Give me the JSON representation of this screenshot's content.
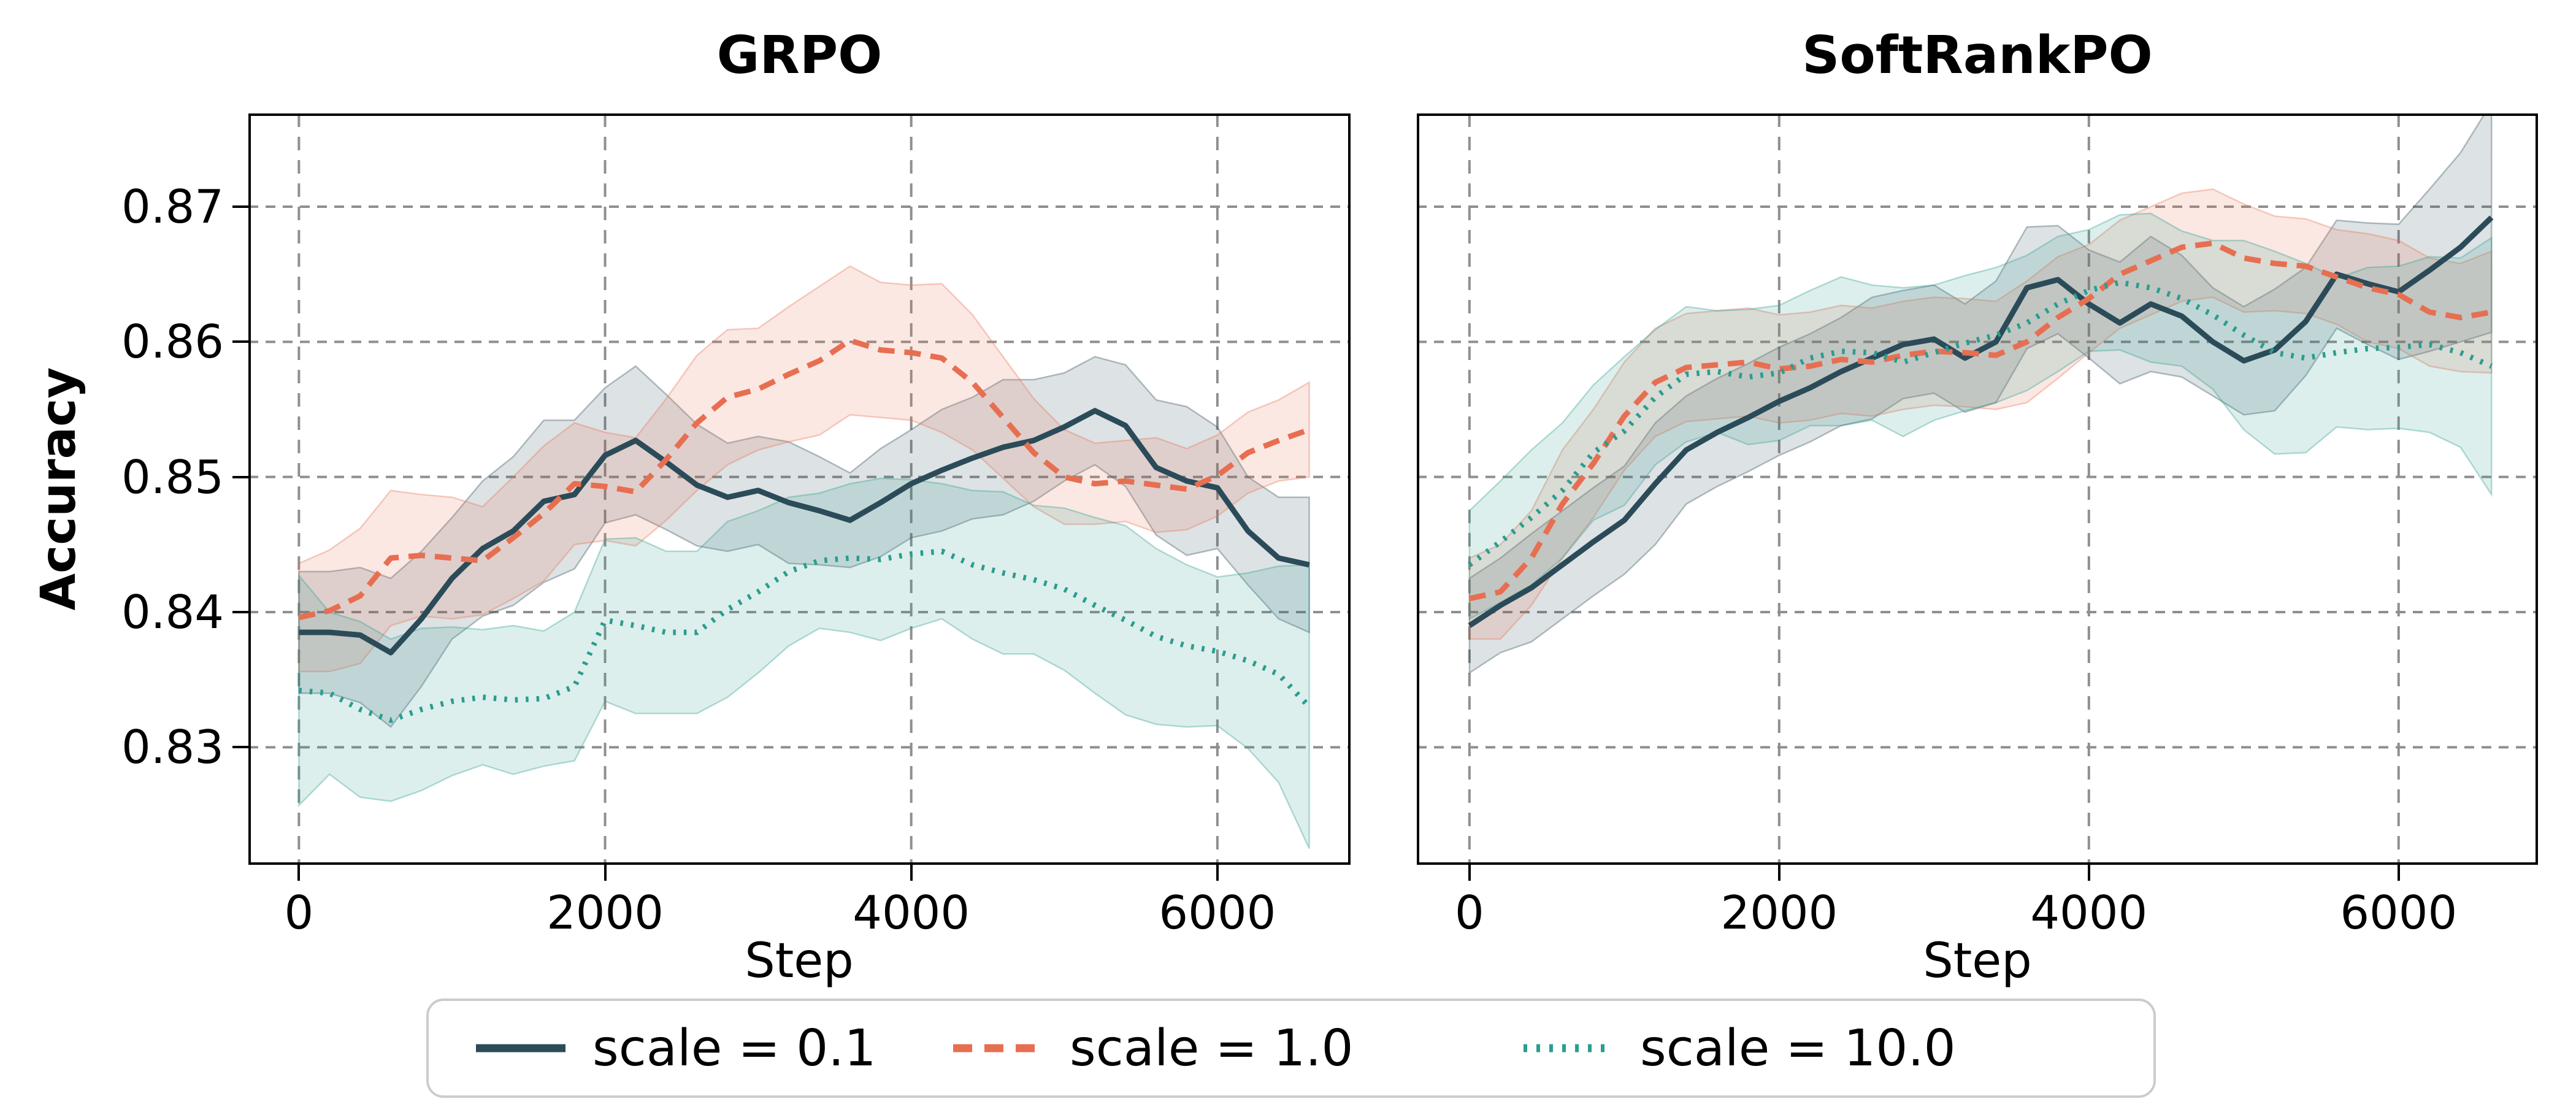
{
  "figure": {
    "ylabel": "Accuracy",
    "xlabel": "Step"
  },
  "legend": {
    "items": [
      {
        "label": "scale = 0.1",
        "color": "#2b4b59",
        "style": "solid"
      },
      {
        "label": "scale = 1.0",
        "color": "#e76f51",
        "style": "dashed"
      },
      {
        "label": "scale = 10.0",
        "color": "#2a9d8f",
        "style": "dotted"
      }
    ]
  },
  "chart_data": [
    {
      "type": "line",
      "title": "GRPO",
      "xlabel": "Step",
      "ylabel": "Accuracy",
      "x": [
        0,
        200,
        400,
        600,
        800,
        1000,
        1200,
        1400,
        1600,
        1800,
        2000,
        2200,
        2400,
        2600,
        2800,
        3000,
        3200,
        3400,
        3600,
        3800,
        4000,
        4200,
        4400,
        4600,
        4800,
        5000,
        5200,
        5400,
        5600,
        5800,
        6000,
        6200,
        6400,
        6600
      ],
      "xticks": [
        0,
        2000,
        4000,
        6000
      ],
      "yticks": [
        0.83,
        0.84,
        0.85,
        0.86,
        0.87
      ],
      "ytick_labels": [
        "0.83",
        "0.84",
        "0.85",
        "0.86",
        "0.87"
      ],
      "xlim": [
        -330,
        6870
      ],
      "ylim": [
        0.8213,
        0.8769
      ],
      "grid": true,
      "legend_position": "bottom-center-shared",
      "series": [
        {
          "name": "scale = 0.1",
          "color": "#2b4b59",
          "style": "solid",
          "values": [
            0.8385,
            0.8385,
            0.8383,
            0.837,
            0.8395,
            0.8425,
            0.8447,
            0.846,
            0.8482,
            0.8487,
            0.8516,
            0.8527,
            0.8511,
            0.8494,
            0.8485,
            0.849,
            0.8481,
            0.8475,
            0.8468,
            0.8481,
            0.8495,
            0.8505,
            0.8514,
            0.8522,
            0.8527,
            0.8537,
            0.8549,
            0.8538,
            0.8507,
            0.8497,
            0.8492,
            0.846,
            0.844,
            0.8435
          ],
          "band_halfwidth": [
            0.0045,
            0.0045,
            0.005,
            0.0055,
            0.005,
            0.0045,
            0.005,
            0.0055,
            0.006,
            0.0055,
            0.005,
            0.0055,
            0.005,
            0.0045,
            0.004,
            0.004,
            0.0045,
            0.004,
            0.0035,
            0.004,
            0.004,
            0.0045,
            0.0045,
            0.005,
            0.0045,
            0.004,
            0.004,
            0.0045,
            0.005,
            0.0055,
            0.0045,
            0.004,
            0.0045,
            0.005
          ]
        },
        {
          "name": "scale = 1.0",
          "color": "#e76f51",
          "style": "dashed",
          "values": [
            0.8396,
            0.8401,
            0.8412,
            0.844,
            0.8442,
            0.844,
            0.8438,
            0.8455,
            0.8473,
            0.8495,
            0.8493,
            0.8489,
            0.8513,
            0.854,
            0.8559,
            0.8565,
            0.8576,
            0.8586,
            0.8601,
            0.8594,
            0.8592,
            0.8588,
            0.857,
            0.8544,
            0.8518,
            0.85,
            0.8495,
            0.8497,
            0.8494,
            0.8491,
            0.8501,
            0.8518,
            0.8527,
            0.8535
          ],
          "band_halfwidth": [
            0.004,
            0.0045,
            0.005,
            0.005,
            0.0045,
            0.0045,
            0.004,
            0.0045,
            0.005,
            0.0045,
            0.004,
            0.004,
            0.0045,
            0.005,
            0.005,
            0.0045,
            0.005,
            0.0055,
            0.0055,
            0.005,
            0.005,
            0.0055,
            0.005,
            0.0045,
            0.004,
            0.0035,
            0.003,
            0.003,
            0.0035,
            0.003,
            0.003,
            0.003,
            0.003,
            0.0035
          ]
        },
        {
          "name": "scale = 10.0",
          "color": "#2a9d8f",
          "style": "dotted",
          "values": [
            0.8342,
            0.834,
            0.8328,
            0.832,
            0.8328,
            0.8334,
            0.8337,
            0.8335,
            0.8336,
            0.8345,
            0.8394,
            0.839,
            0.8385,
            0.8385,
            0.8402,
            0.8415,
            0.843,
            0.8438,
            0.844,
            0.8439,
            0.8443,
            0.8445,
            0.8435,
            0.8429,
            0.8424,
            0.8417,
            0.8405,
            0.8394,
            0.8382,
            0.8375,
            0.8371,
            0.8364,
            0.8354,
            0.833
          ],
          "band_halfwidth": [
            0.0085,
            0.006,
            0.0065,
            0.006,
            0.006,
            0.0055,
            0.005,
            0.0055,
            0.005,
            0.0055,
            0.006,
            0.0065,
            0.006,
            0.006,
            0.0065,
            0.006,
            0.0055,
            0.005,
            0.0055,
            0.006,
            0.0055,
            0.005,
            0.0055,
            0.006,
            0.0055,
            0.006,
            0.0065,
            0.007,
            0.0065,
            0.006,
            0.0055,
            0.0065,
            0.008,
            0.0105
          ]
        }
      ]
    },
    {
      "type": "line",
      "title": "SoftRankPO",
      "xlabel": "Step",
      "ylabel": "",
      "x": [
        0,
        200,
        400,
        600,
        800,
        1000,
        1200,
        1400,
        1600,
        1800,
        2000,
        2200,
        2400,
        2600,
        2800,
        3000,
        3200,
        3400,
        3600,
        3800,
        4000,
        4200,
        4400,
        4600,
        4800,
        5000,
        5200,
        5400,
        5600,
        5800,
        6000,
        6200,
        6400,
        6600
      ],
      "xticks": [
        0,
        2000,
        4000,
        6000
      ],
      "yticks": [
        0.83,
        0.84,
        0.85,
        0.86,
        0.87
      ],
      "ytick_labels": [],
      "xlim": [
        -340,
        6900
      ],
      "ylim": [
        0.8213,
        0.8769
      ],
      "grid": true,
      "series": [
        {
          "name": "scale = 0.1",
          "color": "#2b4b59",
          "style": "solid",
          "values": [
            0.839,
            0.8405,
            0.8418,
            0.8435,
            0.8452,
            0.8468,
            0.8495,
            0.852,
            0.8533,
            0.8544,
            0.8556,
            0.8566,
            0.8578,
            0.8588,
            0.8598,
            0.8602,
            0.8588,
            0.86,
            0.864,
            0.8646,
            0.8628,
            0.8614,
            0.8628,
            0.8619,
            0.86,
            0.8586,
            0.8594,
            0.8615,
            0.865,
            0.8643,
            0.8637,
            0.8653,
            0.867,
            0.8692
          ],
          "band_halfwidth": [
            0.0035,
            0.0035,
            0.004,
            0.004,
            0.004,
            0.004,
            0.0045,
            0.004,
            0.004,
            0.004,
            0.004,
            0.004,
            0.004,
            0.0045,
            0.004,
            0.004,
            0.004,
            0.0045,
            0.0045,
            0.004,
            0.004,
            0.0045,
            0.005,
            0.0045,
            0.004,
            0.004,
            0.0045,
            0.004,
            0.004,
            0.0045,
            0.005,
            0.006,
            0.007,
            0.0085
          ]
        },
        {
          "name": "scale = 1.0",
          "color": "#e76f51",
          "style": "dashed",
          "values": [
            0.841,
            0.8415,
            0.844,
            0.848,
            0.851,
            0.8545,
            0.857,
            0.8581,
            0.8583,
            0.8585,
            0.858,
            0.8582,
            0.8587,
            0.8585,
            0.859,
            0.8593,
            0.8592,
            0.859,
            0.86,
            0.8618,
            0.8632,
            0.865,
            0.866,
            0.867,
            0.8673,
            0.8662,
            0.8658,
            0.8656,
            0.8648,
            0.864,
            0.8635,
            0.8622,
            0.8618,
            0.8622
          ],
          "band_halfwidth": [
            0.003,
            0.0035,
            0.0035,
            0.004,
            0.004,
            0.004,
            0.004,
            0.004,
            0.004,
            0.004,
            0.004,
            0.004,
            0.004,
            0.004,
            0.004,
            0.004,
            0.004,
            0.004,
            0.0045,
            0.0045,
            0.004,
            0.004,
            0.004,
            0.004,
            0.004,
            0.004,
            0.0035,
            0.0035,
            0.0035,
            0.004,
            0.004,
            0.004,
            0.004,
            0.0045
          ]
        },
        {
          "name": "scale = 10.0",
          "color": "#2a9d8f",
          "style": "dotted",
          "values": [
            0.8435,
            0.8452,
            0.847,
            0.849,
            0.8518,
            0.8534,
            0.8559,
            0.8576,
            0.8578,
            0.8574,
            0.8577,
            0.8588,
            0.8593,
            0.8592,
            0.8585,
            0.8592,
            0.8599,
            0.8605,
            0.8614,
            0.8628,
            0.8638,
            0.8644,
            0.864,
            0.8632,
            0.862,
            0.8605,
            0.8592,
            0.8588,
            0.8592,
            0.8595,
            0.8596,
            0.8598,
            0.8592,
            0.8582
          ],
          "band_halfwidth": [
            0.004,
            0.0045,
            0.005,
            0.005,
            0.005,
            0.0055,
            0.005,
            0.005,
            0.0045,
            0.005,
            0.005,
            0.005,
            0.0055,
            0.005,
            0.0055,
            0.005,
            0.005,
            0.005,
            0.005,
            0.005,
            0.0045,
            0.005,
            0.0055,
            0.005,
            0.0055,
            0.007,
            0.0075,
            0.007,
            0.0055,
            0.006,
            0.006,
            0.0065,
            0.007,
            0.0095
          ]
        }
      ]
    }
  ],
  "style": {
    "grid_color": "#8f8f8f",
    "spine_color": "#000000",
    "band_opacity": 0.16
  }
}
